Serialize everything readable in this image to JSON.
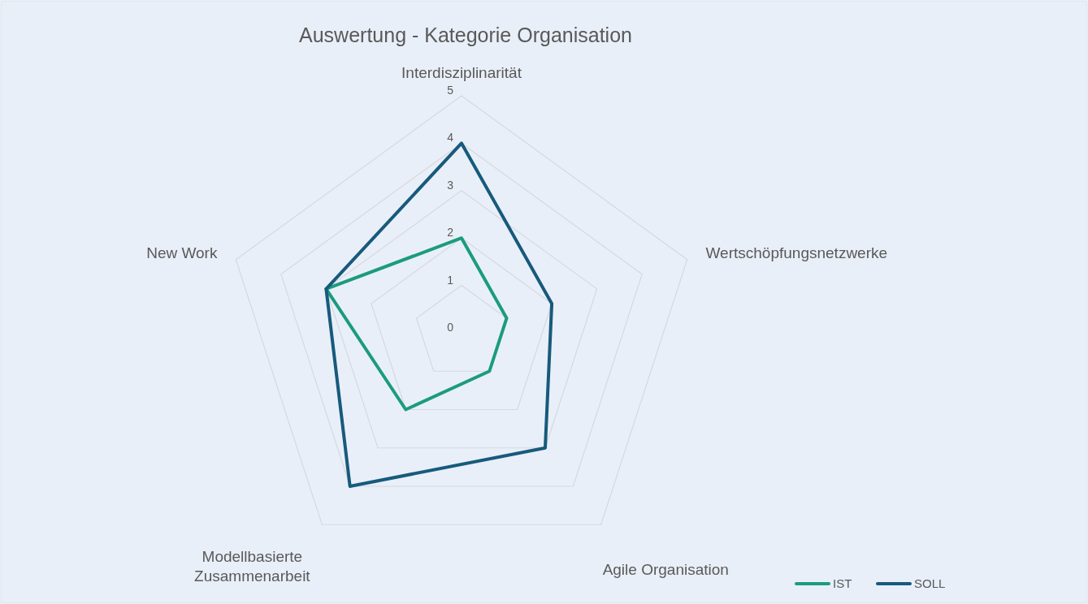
{
  "chart_data": {
    "type": "radar",
    "title": "Auswertung - Kategorie Organisation",
    "categories": [
      "Interdisziplinarität",
      "Wertschöpfungsnetzwerke",
      "Agile Organisation",
      "Modellbasierte Zusammenarbeit",
      "New Work"
    ],
    "series": [
      {
        "name": "IST",
        "color": "#1b9c7c",
        "values": [
          2,
          1,
          1,
          2,
          3
        ]
      },
      {
        "name": "SOLL",
        "color": "#175a7c",
        "values": [
          4,
          2,
          3,
          4,
          3
        ]
      }
    ],
    "ylim": [
      0,
      5
    ],
    "yticks": [
      0,
      1,
      2,
      3,
      4,
      5
    ],
    "grid": true,
    "legend": "bottom right",
    "marker": "none",
    "line_style": "solid"
  }
}
